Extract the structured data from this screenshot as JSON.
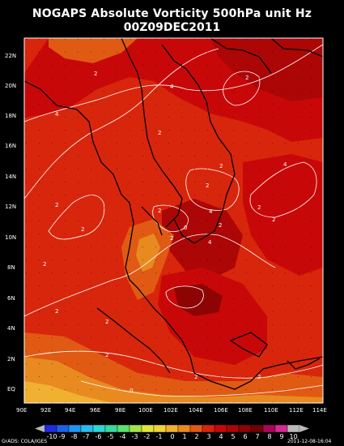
{
  "title": "NOGAPS Absolute Vorticity 500hPa unit Hz",
  "subtitle": "00Z09DEC2011",
  "y_labels": [
    "22N",
    "20N",
    "18N",
    "16N",
    "14N",
    "12N",
    "10N",
    "8N",
    "6N",
    "4N",
    "2N",
    "EQ"
  ],
  "x_labels": [
    "90E",
    "92E",
    "94E",
    "96E",
    "98E",
    "100E",
    "102E",
    "104E",
    "106E",
    "108E",
    "110E",
    "112E",
    "114E"
  ],
  "contour_labels": [
    "2",
    "4",
    "2",
    "4",
    "2",
    "2",
    "2",
    "2",
    "4",
    "2",
    "2",
    "2",
    "2",
    "0",
    "4",
    "2",
    "2",
    "4",
    "2",
    "2",
    "2",
    "2",
    "0",
    "2",
    "2"
  ],
  "colorbar": {
    "labels": [
      "-10",
      "-9",
      "-8",
      "-7",
      "-6",
      "-5",
      "-4",
      "-3",
      "-2",
      "-1",
      "0",
      "1",
      "2",
      "3",
      "4",
      "5",
      "6",
      "7",
      "8",
      "9",
      "10"
    ],
    "colors": [
      "#1f2ce0",
      "#1c62e6",
      "#1f96f0",
      "#28bdea",
      "#2ed6d2",
      "#3cd6a0",
      "#5ee06e",
      "#a6e34a",
      "#dfe63a",
      "#f0d23a",
      "#f0b030",
      "#e88a20",
      "#e05a14",
      "#d8260c",
      "#c80808",
      "#ac0606",
      "#8e0404",
      "#700202",
      "#a8085a",
      "#d82a96",
      "#b8b8b8"
    ]
  },
  "credit_left": "GrADS: COLA/IGES",
  "credit_right": "2011-12-08-16:04"
}
